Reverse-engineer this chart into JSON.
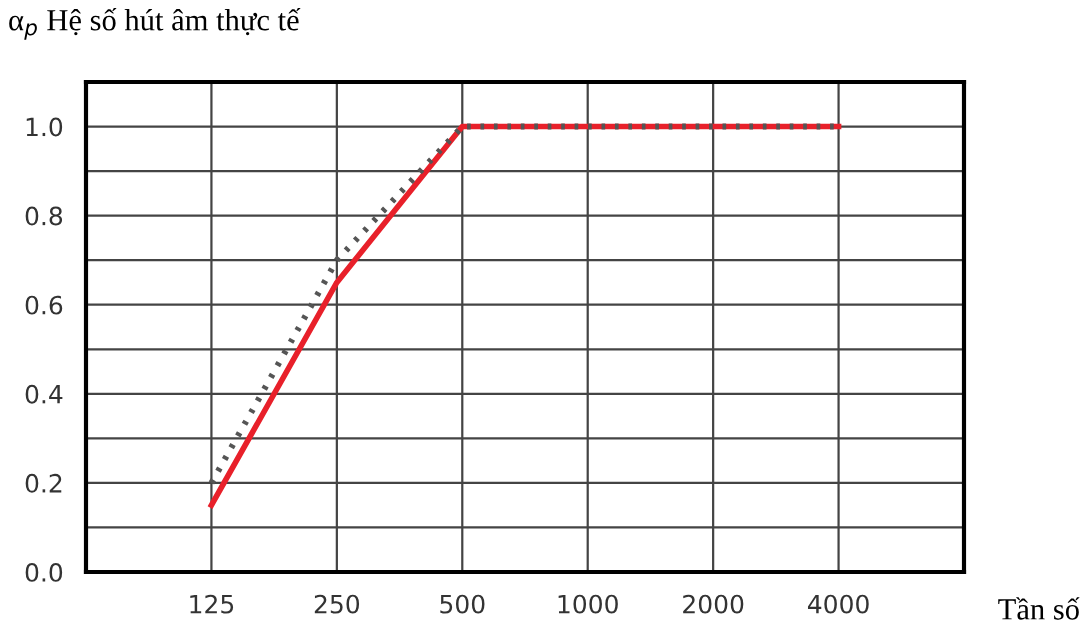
{
  "chart_data": {
    "type": "line",
    "ylabel": "α$_{p}$ Hệ số hút âm thực tế",
    "xlabel": "Tần số",
    "categories": [
      "125",
      "250",
      "500",
      "1000",
      "2000",
      "4000"
    ],
    "series": [
      {
        "color": "#e8202a",
        "values": [
          0.15,
          0.65,
          1.0,
          1.0,
          1.0,
          1.0
        ],
        "line_style": "solid"
      },
      {
        "color": "#555555",
        "values": [
          0.2,
          0.7,
          1.0,
          1.0,
          1.0,
          1.0
        ],
        "line_style": "dotted"
      }
    ],
    "ylim": [
      0,
      1.1
    ],
    "yticks": [
      {
        "value": 0,
        "label": "0.0"
      },
      {
        "value": 0.1,
        "label": null
      },
      {
        "value": 0.2,
        "label": "0.2"
      },
      {
        "value": 0.3,
        "label": null
      },
      {
        "value": 0.4,
        "label": "0.4"
      },
      {
        "value": 0.5,
        "label": null
      },
      {
        "value": 0.6,
        "label": "0.6"
      },
      {
        "value": 0.7,
        "label": null
      },
      {
        "value": 0.8,
        "label": "0.8"
      },
      {
        "value": 0.9,
        "label": null
      },
      {
        "value": 1.0,
        "label": "1.0"
      }
    ],
    "grid": true,
    "legend": false,
    "marker": "none"
  }
}
